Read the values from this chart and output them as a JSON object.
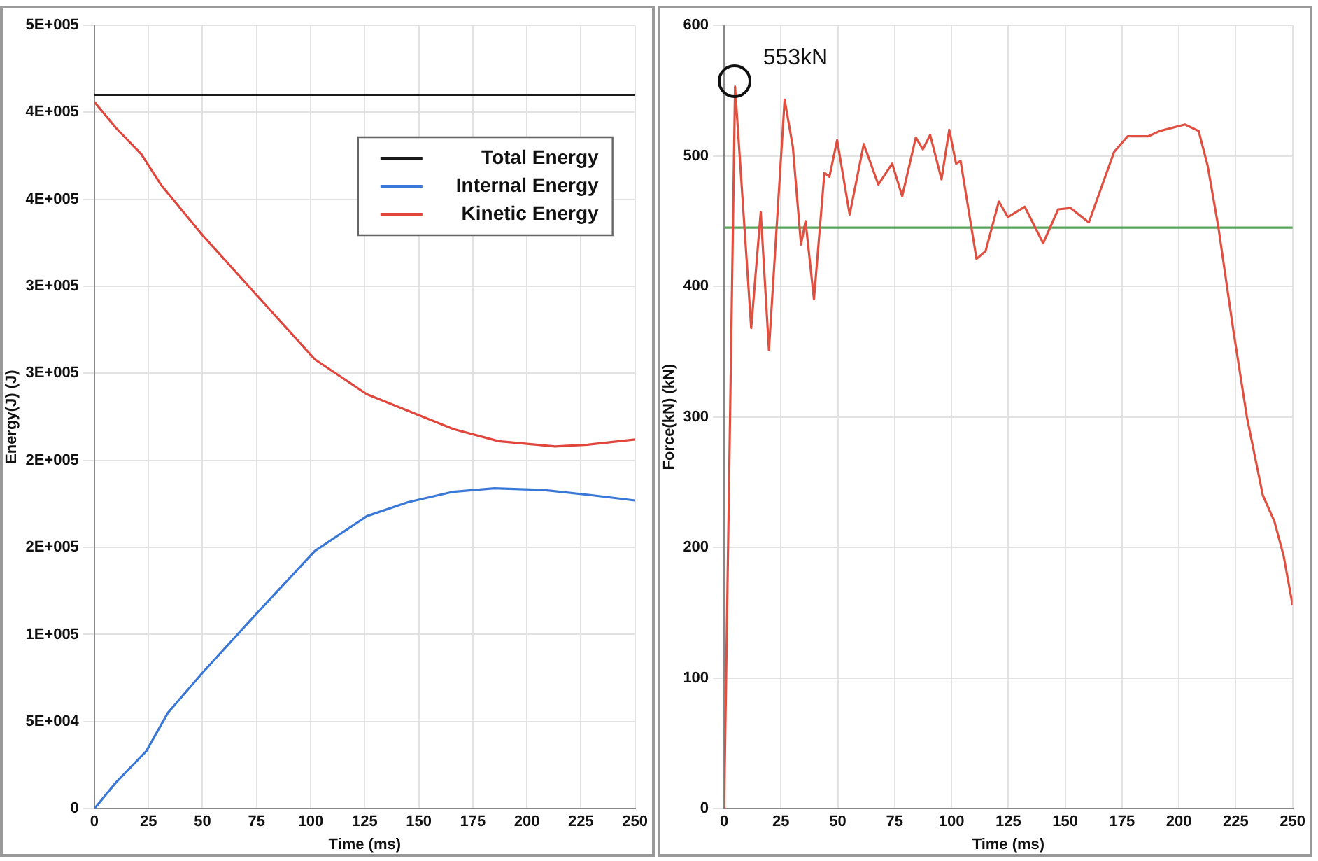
{
  "chart_data": [
    {
      "type": "line",
      "xlabel": "Time (ms)",
      "ylabel": "Energy(J) (J)",
      "xlim": [
        0,
        250
      ],
      "xticks": [
        0,
        25,
        50,
        75,
        100,
        125,
        150,
        175,
        200,
        225,
        250
      ],
      "ylim": [
        0,
        450000
      ],
      "yticks": [
        {
          "value": 0,
          "label": "0"
        },
        {
          "value": 50000,
          "label": "5E+004"
        },
        {
          "value": 100000,
          "label": "1E+005"
        },
        {
          "value": 150000,
          "label": "2E+005"
        },
        {
          "value": 200000,
          "label": "2E+005"
        },
        {
          "value": 250000,
          "label": "3E+005"
        },
        {
          "value": 300000,
          "label": "3E+005"
        },
        {
          "value": 350000,
          "label": "4E+005"
        },
        {
          "value": 400000,
          "label": "4E+005"
        },
        {
          "value": 450000,
          "label": "5E+005"
        }
      ],
      "grid": true,
      "legend": "top right",
      "series": [
        {
          "name": "Total Energy",
          "color": "#1a1a1a",
          "x": [
            0,
            250
          ],
          "values": [
            410000,
            410000
          ]
        },
        {
          "name": "Internal Energy",
          "color": "#3a78d8",
          "x": [
            0,
            10,
            24,
            34,
            50,
            75,
            102,
            126,
            145,
            166,
            185,
            208,
            230,
            250
          ],
          "values": [
            0,
            15000,
            33000,
            55000,
            78000,
            112000,
            148000,
            168000,
            176000,
            182000,
            184000,
            183000,
            180000,
            177000
          ]
        },
        {
          "name": "Kinetic Energy",
          "color": "#e0463c",
          "x": [
            0,
            10,
            21.7,
            31,
            51,
            75,
            102,
            126,
            166,
            187,
            213,
            228,
            250
          ],
          "values": [
            406000,
            391000,
            376000,
            358000,
            328000,
            295000,
            258000,
            238000,
            218000,
            211000,
            208000,
            209000,
            212000
          ]
        }
      ]
    },
    {
      "type": "line",
      "xlabel": "Time (ms)",
      "ylabel": "Force(kN) (kN)",
      "xlim": [
        0,
        250
      ],
      "xticks": [
        0,
        25,
        50,
        75,
        100,
        125,
        150,
        175,
        200,
        225,
        250
      ],
      "ylim": [
        0,
        600
      ],
      "yticks": [
        0,
        100,
        200,
        300,
        400,
        500,
        600
      ],
      "grid": true,
      "ref_lines": [
        {
          "axis": "y",
          "value": 445,
          "color": "#5aa55a"
        }
      ],
      "annotations": [
        {
          "text": "553kN",
          "x": 4.8,
          "y": 553
        }
      ],
      "series": [
        {
          "color": "#e05040",
          "x": [
            0,
            4.8,
            11.9,
            16.1,
            19.7,
            26.6,
            30.2,
            33.8,
            35.8,
            39.5,
            44.1,
            46.3,
            49.7,
            55.2,
            61.4,
            67.8,
            73.9,
            78.3,
            84.3,
            87.4,
            90.6,
            95.6,
            99,
            102,
            104,
            111,
            115,
            120.8,
            124.8,
            132.2,
            140.3,
            146.9,
            152.4,
            160.4,
            171.5,
            177.5,
            186.6,
            191.6,
            202.7,
            208.7,
            212.7,
            217.4,
            223.8,
            229.9,
            236.9,
            242,
            246,
            250
          ],
          "values": [
            0,
            553,
            368,
            457,
            351,
            543,
            507,
            432,
            450,
            390,
            487,
            484,
            512,
            455,
            509,
            478,
            494,
            469,
            514,
            505,
            516,
            482,
            520,
            494,
            496,
            421,
            427,
            465,
            453,
            461,
            433,
            459,
            460,
            449,
            503,
            515,
            515,
            519,
            524,
            519,
            492,
            445,
            368,
            300,
            240,
            220,
            194,
            156
          ]
        }
      ]
    }
  ]
}
